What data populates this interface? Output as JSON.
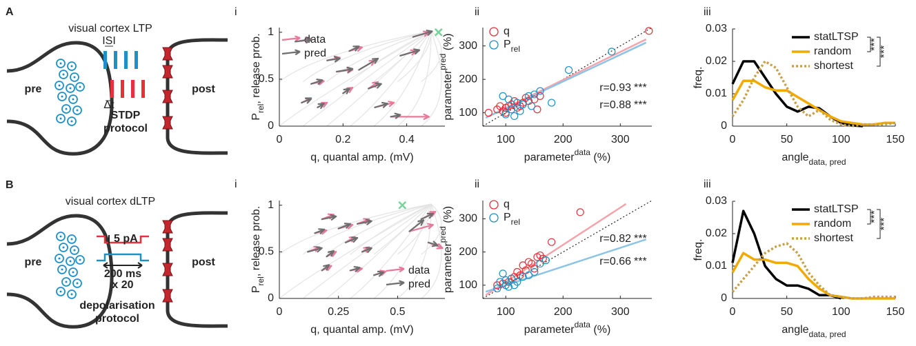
{
  "schematics": [
    {
      "label": "A",
      "title": "visual cortex LTP",
      "pre": "pre",
      "post": "post",
      "isi": "ISI",
      "dt": "Δt",
      "protocol": [
        "STDP",
        "protocol"
      ]
    },
    {
      "label": "B",
      "title": "visual cortex dLTP",
      "pre": "pre",
      "post": "post",
      "current": "5 pA",
      "duration": "200 ms",
      "repeats": "x 20",
      "protocol": [
        "depolarisation",
        "protocol"
      ]
    }
  ],
  "chart_data": [
    {
      "type": "quiver",
      "panel_label": "i",
      "xlabel": "q, quantal amp. (mV)",
      "ylabel": {
        "main": "P",
        "sub": "rel",
        "rest": ", release prob."
      },
      "xlim": [
        0,
        0.52
      ],
      "ylim": [
        0,
        1.05
      ],
      "xticks": [
        0,
        0.2,
        0.4
      ],
      "yticks": [
        0,
        0.5,
        1
      ],
      "legend": "upper left",
      "target": {
        "x": 0.5,
        "y": 1,
        "color": "#77d39a"
      },
      "series": [
        {
          "name": "data",
          "color": "#e8799a",
          "x": [
            0.05,
            0.07,
            0.1,
            0.15,
            0.18,
            0.2,
            0.25,
            0.28,
            0.3,
            0.35,
            0.38,
            0.42,
            0.12,
            0.22
          ],
          "y": [
            0.9,
            0.25,
            0.45,
            0.7,
            0.58,
            0.35,
            0.6,
            0.4,
            0.2,
            0.1,
            0.75,
            0.95,
            0.2,
            0.8
          ],
          "u": [
            0.05,
            0.03,
            0.04,
            0.04,
            0.05,
            0.03,
            0.05,
            0.03,
            0.06,
            0.12,
            0.05,
            0.05,
            0.03,
            0.04
          ],
          "v": [
            0.03,
            0.05,
            0.03,
            0.03,
            0.02,
            0.06,
            0.1,
            0.07,
            0.05,
            0,
            0.05,
            0.05,
            0.05,
            0.04
          ]
        },
        {
          "name": "pred",
          "color": "#6e6e6e",
          "x": [
            0.05,
            0.07,
            0.1,
            0.15,
            0.18,
            0.2,
            0.25,
            0.28,
            0.3,
            0.35,
            0.38,
            0.42,
            0.12,
            0.22
          ],
          "y": [
            0.9,
            0.25,
            0.45,
            0.7,
            0.58,
            0.35,
            0.6,
            0.4,
            0.2,
            0.1,
            0.75,
            0.95,
            0.2,
            0.8
          ],
          "u": [
            0.05,
            0.03,
            0.035,
            0.04,
            0.05,
            0.02,
            0.06,
            0.04,
            0.04,
            0.03,
            0.06,
            0.06,
            0.02,
            0.03
          ],
          "v": [
            0.02,
            0.04,
            0.04,
            0.02,
            0.03,
            0.05,
            0.12,
            0.05,
            0.04,
            0.02,
            0.06,
            0.06,
            0.04,
            0.05
          ]
        }
      ]
    },
    {
      "type": "scatter",
      "panel_label": "ii",
      "xlabel": {
        "main": "parameter",
        "sup": "data",
        "rest": " (%)"
      },
      "ylabel": {
        "main": "parameter",
        "sup": "pred",
        "rest": " (%)"
      },
      "xlim": [
        60,
        355
      ],
      "ylim": [
        60,
        355
      ],
      "xticks": [
        100,
        200,
        300
      ],
      "yticks": [
        100,
        200,
        300
      ],
      "identity_line": true,
      "legend": "upper left",
      "series": [
        {
          "name": "q",
          "color": "#e8303a",
          "fit_color": "#f5a3ab",
          "x": [
            70,
            85,
            95,
            100,
            105,
            110,
            120,
            130,
            140,
            150,
            155,
            160,
            100,
            115,
            125,
            350,
            90,
            135
          ],
          "y": [
            100,
            110,
            105,
            115,
            120,
            125,
            115,
            130,
            135,
            140,
            110,
            150,
            100,
            135,
            120,
            345,
            120,
            145
          ],
          "fit": {
            "x": [
              65,
              345
            ],
            "y": [
              85,
              320
            ]
          },
          "annotation": "r=0.93",
          "stars": "***"
        },
        {
          "name": {
            "main": "P",
            "sub": "rel"
          },
          "color": "#1e90c8",
          "fit_color": "#8cc4e6",
          "x": [
            95,
            100,
            110,
            120,
            130,
            140,
            150,
            160,
            180,
            210,
            285,
            105,
            115,
            125,
            145
          ],
          "y": [
            150,
            95,
            110,
            130,
            125,
            150,
            155,
            165,
            130,
            228,
            283,
            140,
            90,
            105,
            120
          ],
          "fit": {
            "x": [
              65,
              345
            ],
            "y": [
              85,
              310
            ]
          },
          "annotation": "r=0.88",
          "stars": "***"
        }
      ]
    },
    {
      "type": "line",
      "panel_label": "iii",
      "xlabel": {
        "main": "angle",
        "sub": "data, pred"
      },
      "ylabel": "freq.",
      "xlim": [
        0,
        150
      ],
      "ylim": [
        0,
        0.03
      ],
      "xticks": [
        0,
        50,
        100,
        150
      ],
      "yticks": [
        0,
        0.01,
        0.02,
        0.03
      ],
      "legend": "upper right",
      "x": [
        0,
        10,
        20,
        30,
        40,
        50,
        60,
        70,
        80,
        90,
        100,
        110,
        120,
        130,
        140,
        150
      ],
      "series": [
        {
          "name": "statLTSP",
          "color": "#000000",
          "style": "solid",
          "values": [
            0.013,
            0.02,
            0.02,
            0.015,
            0.01,
            0.006,
            0.0045,
            0.006,
            0.0055,
            0.003,
            0.001,
            0.0002,
            0,
            null,
            null,
            null
          ]
        },
        {
          "name": "random",
          "color": "#f2a900",
          "style": "solid",
          "values": [
            0.008,
            0.014,
            0.014,
            0.012,
            0.011,
            0.011,
            0.009,
            0.007,
            0.005,
            0.003,
            0.0015,
            0.001,
            0.0005,
            0.0005,
            0.001,
            0.001
          ]
        },
        {
          "name": "shortest",
          "color": "#c9a04a",
          "style": "dotted",
          "values": [
            0.003,
            0.008,
            0.015,
            0.02,
            0.018,
            0.012,
            0.006,
            0.003,
            0.005,
            0.002,
            0.0005,
            0,
            0.0005,
            0.0005,
            0.0005,
            0.001
          ]
        }
      ],
      "significance": [
        "***",
        "***"
      ]
    },
    {
      "type": "quiver",
      "panel_label": "i",
      "xlabel": "q, quantal amp. (mV)",
      "ylabel": {
        "main": "P",
        "sub": "rel",
        "rest": ", release prob."
      },
      "xlim": [
        0,
        0.7
      ],
      "ylim": [
        0,
        1.05
      ],
      "xticks": [
        0,
        0.25,
        0.5
      ],
      "yticks": [
        0,
        0.5,
        1
      ],
      "legend": "lower right",
      "target": {
        "x": 0.52,
        "y": 1,
        "color": "#77d39a"
      },
      "series": [
        {
          "name": "data",
          "color": "#e8799a",
          "x": [
            0.12,
            0.15,
            0.18,
            0.2,
            0.25,
            0.28,
            0.3,
            0.33,
            0.35,
            0.18,
            0.4,
            0.55,
            0.6,
            0.63
          ],
          "y": [
            0.5,
            0.7,
            0.85,
            0.45,
            0.75,
            0.6,
            0.3,
            0.8,
            0.5,
            0.3,
            0.25,
            0.72,
            0.85,
            0.6
          ],
          "u": [
            0.05,
            0.05,
            0.05,
            0.04,
            0.06,
            0.04,
            0.05,
            0.05,
            0.03,
            0.04,
            0.05,
            0.1,
            0.06,
            0.06
          ],
          "v": [
            0.05,
            0.03,
            0.05,
            0.05,
            0.04,
            0.06,
            0.02,
            0.05,
            0.05,
            0.05,
            0.04,
            0.07,
            0.08,
            -0.06
          ]
        },
        {
          "name": "pred",
          "color": "#6e6e6e",
          "x": [
            0.12,
            0.15,
            0.18,
            0.2,
            0.25,
            0.28,
            0.3,
            0.33,
            0.35,
            0.18,
            0.4,
            0.55,
            0.6,
            0.63
          ],
          "y": [
            0.5,
            0.7,
            0.85,
            0.45,
            0.75,
            0.6,
            0.3,
            0.8,
            0.5,
            0.3,
            0.25,
            0.72,
            0.85,
            0.6
          ],
          "u": [
            0.06,
            0.04,
            0.06,
            0.03,
            0.05,
            0.05,
            0.04,
            0.06,
            0.04,
            0.03,
            0.04,
            0.06,
            0.05,
            0.04
          ],
          "v": [
            0.04,
            0.04,
            0.03,
            0.06,
            0.05,
            0.05,
            0.03,
            0.03,
            0.04,
            0.06,
            0.03,
            0.12,
            0.06,
            -0.03
          ]
        }
      ]
    },
    {
      "type": "scatter",
      "panel_label": "ii",
      "xlabel": {
        "main": "parameter",
        "sup": "data",
        "rest": " (%)"
      },
      "ylabel": {
        "main": "parameter",
        "sup": "pred",
        "rest": " (%)"
      },
      "xlim": [
        60,
        355
      ],
      "ylim": [
        60,
        355
      ],
      "xticks": [
        100,
        200,
        300
      ],
      "yticks": [
        100,
        200,
        300
      ],
      "identity_line": true,
      "legend": "upper left",
      "series": [
        {
          "name": "q",
          "color": "#e8303a",
          "fit_color": "#f5a3ab",
          "x": [
            85,
            95,
            105,
            110,
            120,
            130,
            140,
            150,
            155,
            160,
            180,
            165,
            145,
            230,
            125,
            115,
            135
          ],
          "y": [
            100,
            105,
            110,
            120,
            140,
            160,
            170,
            150,
            185,
            190,
            230,
            180,
            165,
            320,
            130,
            125,
            145
          ],
          "fit": {
            "x": [
              65,
              310
            ],
            "y": [
              70,
              345
            ]
          },
          "annotation": "r=0.82",
          "stars": "***"
        },
        {
          "name": {
            "main": "P",
            "sub": "rel"
          },
          "color": "#1e90c8",
          "fit_color": "#8cc4e6",
          "x": [
            85,
            90,
            95,
            100,
            105,
            110,
            120,
            130,
            140,
            150,
            160,
            170,
            100,
            115
          ],
          "y": [
            90,
            110,
            135,
            100,
            95,
            120,
            110,
            125,
            130,
            140,
            165,
            175,
            115,
            100
          ],
          "fit": {
            "x": [
              65,
              345
            ],
            "y": [
              80,
              238
            ]
          },
          "annotation": "r=0.66",
          "stars": "***"
        }
      ]
    },
    {
      "type": "line",
      "panel_label": "iii",
      "xlabel": {
        "main": "angle",
        "sub": "data, pred"
      },
      "ylabel": "freq.",
      "xlim": [
        0,
        150
      ],
      "ylim": [
        0,
        0.03
      ],
      "xticks": [
        0,
        50,
        100,
        150
      ],
      "yticks": [
        0,
        0.01,
        0.02,
        0.03
      ],
      "legend": "upper right",
      "x": [
        0,
        10,
        20,
        30,
        40,
        50,
        60,
        70,
        80,
        90,
        100,
        110,
        120,
        130,
        140,
        150
      ],
      "series": [
        {
          "name": "statLTSP",
          "color": "#000000",
          "style": "solid",
          "values": [
            0.011,
            0.027,
            0.02,
            0.01,
            0.006,
            0.004,
            0.004,
            0.003,
            0.001,
            0.001,
            0,
            null,
            null,
            null,
            null,
            null
          ]
        },
        {
          "name": "random",
          "color": "#f2a900",
          "style": "solid",
          "values": [
            0.008,
            0.014,
            0.012,
            0.012,
            0.011,
            0.011,
            0.01,
            0.006,
            0.003,
            0.001,
            0.0005,
            0,
            0,
            0,
            0,
            0
          ]
        },
        {
          "name": "shortest",
          "color": "#c9a04a",
          "style": "dotted",
          "values": [
            0.002,
            0.006,
            0.01,
            0.014,
            0.016,
            0.017,
            0.014,
            0.008,
            0.004,
            0.001,
            0.0005,
            0,
            0,
            0.0005,
            0.0005,
            0.0005
          ]
        }
      ],
      "significance": [
        "***",
        "***"
      ]
    }
  ]
}
